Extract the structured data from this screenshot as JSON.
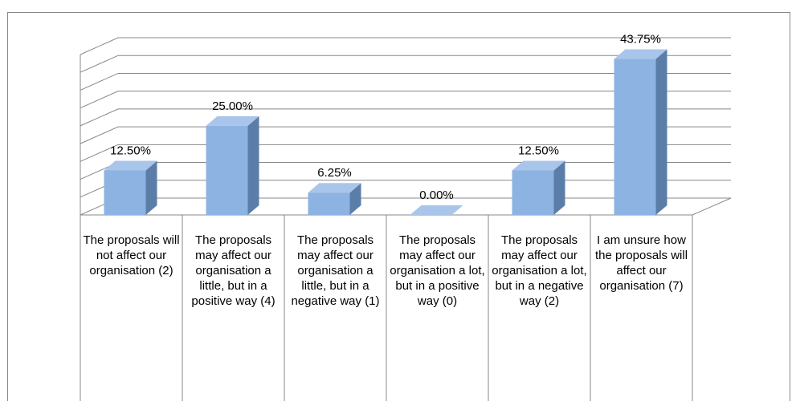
{
  "chart_data": {
    "type": "bar3d",
    "categories": [
      "The proposals will not affect our organisation (2)",
      "The proposals may affect our organisation a little, but in a positive way (4)",
      "The proposals may affect our organisation a little, but in a negative way (1)",
      "The proposals may affect our organisation a lot, but in a positive way (0)",
      "The proposals may affect our organisation a lot, but in a negative way (2)",
      "I am unsure how the proposals will affect our organisation (7)"
    ],
    "values": [
      12.5,
      25,
      6.25,
      0,
      12.5,
      43.75
    ],
    "value_labels": [
      "12.50%",
      "25.00%",
      "6.25%",
      "0.00%",
      "12.50%",
      "43.75%"
    ],
    "color": "#8db3e2",
    "ylim": [
      0,
      45
    ],
    "yticks": [
      0,
      5,
      10,
      15,
      20,
      25,
      30,
      35,
      40,
      45
    ],
    "grid": true
  }
}
